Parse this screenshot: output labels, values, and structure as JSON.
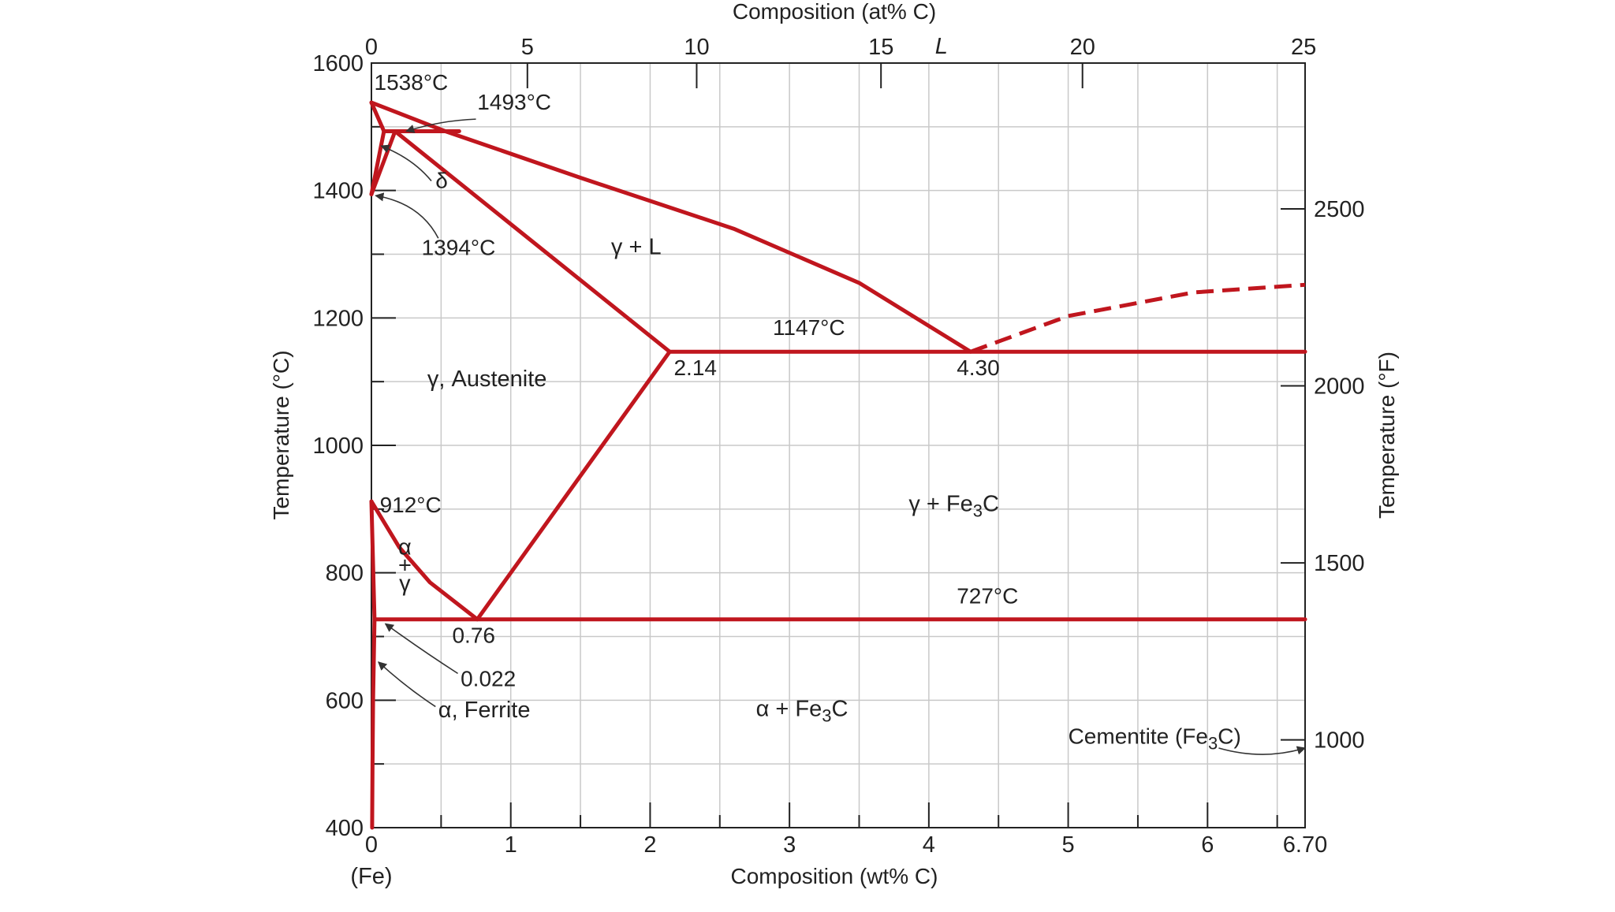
{
  "colors": {
    "boundary": "#c0161e",
    "grid": "#c9c9c9",
    "text": "#222222"
  },
  "chart_data": {
    "type": "phase-diagram",
    "xlabel": "Composition (wt% C)",
    "xlabel_top": "Composition (at% C)",
    "ylabel_left": "Temperature (°C)",
    "ylabel_right": "Temperature (°F)",
    "xlim": [
      0,
      6.7
    ],
    "ylim": [
      400,
      1600
    ],
    "grid": true,
    "x_ticks": [
      "0",
      "1",
      "2",
      "3",
      "4",
      "5",
      "6",
      "6.70"
    ],
    "x_tick_values": [
      0,
      1,
      2,
      3,
      4,
      5,
      6,
      6.7
    ],
    "x_origin_label": "(Fe)",
    "x_top_ticks": [
      "0",
      "5",
      "10",
      "15",
      "20",
      "25"
    ],
    "x_top_tick_values": [
      0,
      5,
      10,
      15,
      20,
      25
    ],
    "y_ticks": [
      "400",
      "600",
      "800",
      "1000",
      "1200",
      "1400",
      "1600"
    ],
    "y_tick_values": [
      400,
      600,
      800,
      1000,
      1200,
      1400,
      1600
    ],
    "y_right_ticks": [
      "1000",
      "1500",
      "2000",
      "2500"
    ],
    "y_right_tick_values": [
      1000,
      1500,
      2000,
      2500
    ],
    "boundaries": [
      {
        "id": "liquidus-delta",
        "points": [
          [
            0,
            1538
          ],
          [
            0.53,
            1493
          ]
        ]
      },
      {
        "id": "delta-solidus",
        "points": [
          [
            0,
            1538
          ],
          [
            0.09,
            1493
          ]
        ]
      },
      {
        "id": "delta-gamma-left",
        "points": [
          [
            0,
            1394
          ],
          [
            0.09,
            1493
          ]
        ]
      },
      {
        "id": "delta-gamma-right",
        "points": [
          [
            0,
            1394
          ],
          [
            0.17,
            1493
          ]
        ]
      },
      {
        "id": "peritectic-line",
        "points": [
          [
            0.09,
            1493
          ],
          [
            0.63,
            1493
          ]
        ]
      },
      {
        "id": "liquidus",
        "points": [
          [
            0.53,
            1493
          ],
          [
            1.5,
            1420
          ],
          [
            2.6,
            1340
          ],
          [
            3.5,
            1255
          ],
          [
            4.3,
            1147
          ]
        ]
      },
      {
        "id": "solidus",
        "points": [
          [
            0.17,
            1493
          ],
          [
            2.14,
            1147
          ]
        ]
      },
      {
        "id": "eutectic-line",
        "points": [
          [
            2.14,
            1147
          ],
          [
            6.7,
            1147
          ]
        ]
      },
      {
        "id": "acm-line",
        "points": [
          [
            2.14,
            1147
          ],
          [
            0.76,
            727
          ]
        ]
      },
      {
        "id": "a3-line",
        "points": [
          [
            0,
            912
          ],
          [
            0.2,
            840
          ],
          [
            0.42,
            785
          ],
          [
            0.76,
            727
          ]
        ]
      },
      {
        "id": "alpha-gamma-line",
        "points": [
          [
            0,
            912
          ],
          [
            0.022,
            727
          ]
        ]
      },
      {
        "id": "eutectoid-line",
        "points": [
          [
            0.022,
            727
          ],
          [
            6.7,
            727
          ]
        ]
      },
      {
        "id": "solvus-alpha",
        "points": [
          [
            0.022,
            727
          ],
          [
            0.012,
            600
          ],
          [
            0.008,
            500
          ],
          [
            0.005,
            400
          ]
        ]
      },
      {
        "id": "cementite-liquidus",
        "dashed": true,
        "points": [
          [
            4.3,
            1147
          ],
          [
            5.0,
            1203
          ],
          [
            5.9,
            1240
          ],
          [
            6.7,
            1252
          ]
        ]
      }
    ],
    "annotations": [
      {
        "text": "1538°C",
        "x": 0.02,
        "y": 1558
      },
      {
        "text": "1493°C",
        "x": 0.76,
        "y": 1527
      },
      {
        "text": "δ",
        "x": 0.46,
        "y": 1404
      },
      {
        "text": "1394°C",
        "x": 0.36,
        "y": 1299
      },
      {
        "text": "1147°C",
        "x": 2.88,
        "y": 1173
      },
      {
        "text": "2.14",
        "x": 2.17,
        "y": 1110
      },
      {
        "text": "4.30",
        "x": 4.2,
        "y": 1110
      },
      {
        "text": "912°C",
        "x": 0.06,
        "y": 895
      },
      {
        "text": "727°C",
        "x": 4.2,
        "y": 752
      },
      {
        "text": "0.76",
        "x": 0.58,
        "y": 690
      },
      {
        "text": "0.022",
        "x": 0.64,
        "y": 622
      },
      {
        "text": "Cementite (Fe3C)",
        "x": 5.0,
        "y": 532
      }
    ],
    "regions": [
      {
        "label": "L",
        "x": 4.09,
        "y": 1615
      },
      {
        "label": "γ + L",
        "x": 1.9,
        "y": 1300
      },
      {
        "label": "γ, Austenite",
        "x": 0.83,
        "y": 1093
      },
      {
        "label": "γ + Fe3C",
        "x": 4.18,
        "y": 897
      },
      {
        "label": "α + Fe3C",
        "x": 3.09,
        "y": 575
      },
      {
        "label": "α, Ferrite",
        "x": 0.81,
        "y": 573
      },
      {
        "label": "α + γ",
        "x": 0.24,
        "y": 800
      }
    ]
  }
}
